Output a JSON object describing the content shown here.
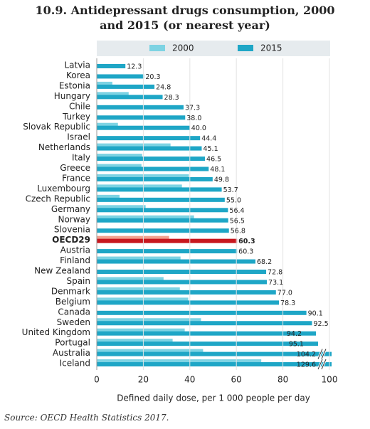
{
  "chart_data": {
    "type": "hbar",
    "title": "10.9. Antidepressant drugs consumption, 2000 and 2015 (or nearest year)",
    "categories": [
      "Latvia",
      "Korea",
      "Estonia",
      "Hungary",
      "Chile",
      "Turkey",
      "Slovak Republic",
      "Israel",
      "Netherlands",
      "Italy",
      "Greece",
      "France",
      "Luxembourg",
      "Czech Republic",
      "Germany",
      "Norway",
      "Slovenia",
      "OECD29",
      "Austria",
      "Finland",
      "New Zealand",
      "Spain",
      "Denmark",
      "Belgium",
      "Canada",
      "Sweden",
      "United Kingdom",
      "Portugal",
      "Australia",
      "Iceland"
    ],
    "series": [
      {
        "name": "2000",
        "color": "#7dd3e3",
        "highlight_color": "#f2a08e",
        "values": [
          null,
          null,
          6.7,
          13.7,
          null,
          null,
          9.1,
          null,
          31.7,
          19.5,
          19.2,
          39.6,
          36.6,
          9.8,
          21,
          41.8,
          null,
          31.1,
          null,
          36,
          null,
          28.7,
          35.7,
          39.3,
          null,
          44.8,
          37.8,
          32.6,
          45.7,
          70.7
        ]
      },
      {
        "name": "2015",
        "color": "#1ea6c6",
        "highlight_color": "#c8171e",
        "values": [
          12.3,
          20.3,
          24.8,
          28.3,
          37.3,
          38,
          40,
          44.4,
          45.1,
          46.5,
          48.1,
          49.8,
          53.7,
          55,
          56.4,
          56.5,
          56.8,
          60.3,
          60.3,
          68.2,
          72.8,
          73.1,
          77,
          78.3,
          90.1,
          92.5,
          94.2,
          95.1,
          104.2,
          129.6
        ],
        "value_labels": [
          "12.3",
          "20.3",
          "24.8",
          "28.3",
          "37.3",
          "38.0",
          "40.0",
          "44.4",
          "45.1",
          "46.5",
          "48.1",
          "49.8",
          "53.7",
          "55.0",
          "56.4",
          "56.5",
          "56.8",
          "60.3",
          "60.3",
          "68.2",
          "72.8",
          "73.1",
          "77.0",
          "78.3",
          "90.1",
          "92.5",
          "94.2",
          "95.1",
          "104.2",
          "129.6"
        ]
      }
    ],
    "highlight_index": 17,
    "xlim": [
      0,
      100
    ],
    "xticks": [
      0,
      20,
      40,
      60,
      80,
      100
    ],
    "grid": true,
    "xlabel": "Defined daily dose, per 1 000 people per day",
    "source": "Source: OECD Health Statistics 2017."
  }
}
